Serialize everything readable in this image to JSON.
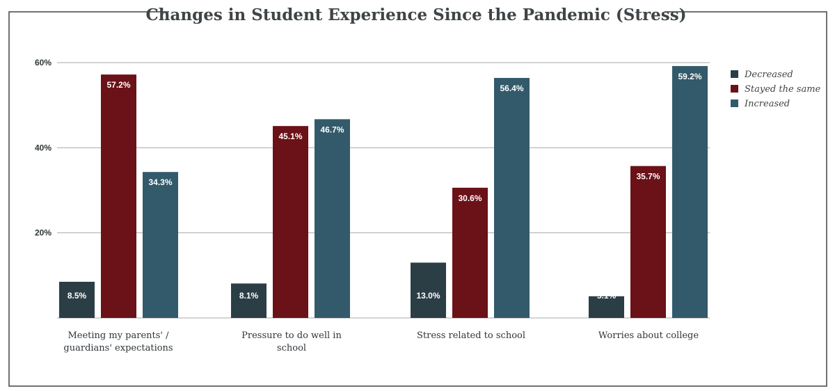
{
  "chart_data": {
    "type": "bar",
    "title": "Changes in Student Experience Since the Pandemic (Stress)",
    "categories": [
      [
        "Meeting my parents' /",
        "guardians' expectations"
      ],
      [
        "Pressure to do well in",
        "school"
      ],
      [
        "Stress related to school"
      ],
      [
        "Worries about college"
      ]
    ],
    "series": [
      {
        "name": "Decreased",
        "color": "#2c3e45",
        "values": [
          8.5,
          8.1,
          13.0,
          5.1
        ],
        "labels": [
          "8.5%",
          "8.1%",
          "13.0%",
          "5.1%"
        ]
      },
      {
        "name": "Stayed the same",
        "color": "#6b1118",
        "values": [
          57.2,
          45.1,
          30.6,
          35.7
        ],
        "labels": [
          "57.2%",
          "45.1%",
          "30.6%",
          "35.7%"
        ]
      },
      {
        "name": "Increased",
        "color": "#325a6a",
        "values": [
          34.3,
          46.7,
          56.4,
          59.2
        ],
        "labels": [
          "34.3%",
          "46.7%",
          "56.4%",
          "59.2%"
        ]
      }
    ],
    "y_ticks": [
      {
        "value": 20,
        "label": "20%"
      },
      {
        "value": 40,
        "label": "40%"
      },
      {
        "value": 60,
        "label": "60%"
      }
    ],
    "ylim": [
      0,
      60
    ],
    "grid": true,
    "legend_position": "right"
  }
}
